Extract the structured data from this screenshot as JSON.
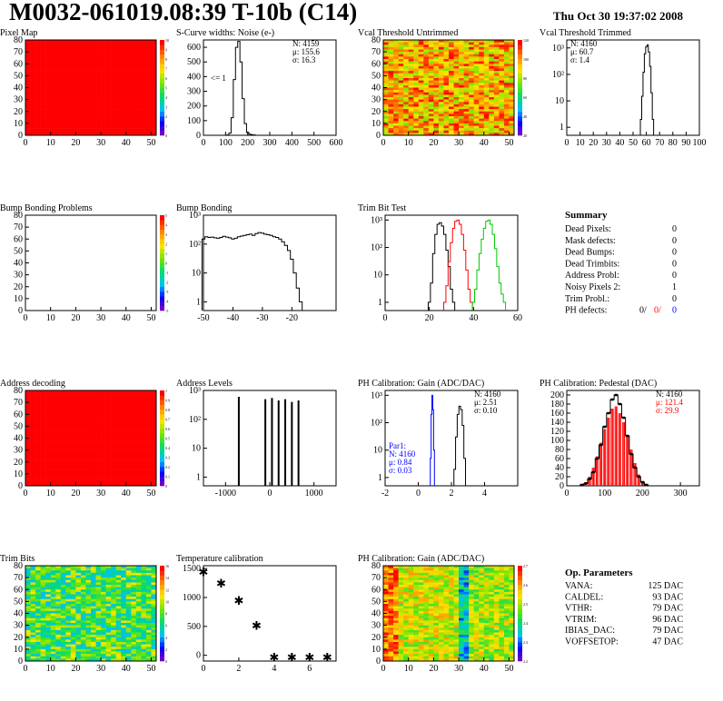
{
  "header": {
    "title": "M0032-061019.08:39 T-10b (C14)",
    "date": "Thu Oct 30 19:37:02 2008"
  },
  "colors": {
    "red": "#ff0000",
    "blue": "#0000ff",
    "green": "#00c800",
    "black": "#000000"
  },
  "chart_data": [
    {
      "id": "pixel-map",
      "type": "heatmap",
      "title": "Pixel Map",
      "xlim": [
        0,
        52
      ],
      "ylim": [
        0,
        80
      ],
      "fill": "#ff0000",
      "xticks": [
        "0",
        "10",
        "20",
        "30",
        "40",
        "50"
      ],
      "yticks": [
        "0",
        "10",
        "20",
        "30",
        "40",
        "50",
        "60",
        "70",
        "80"
      ],
      "zticks": [
        "0",
        "1",
        "2",
        "3",
        "4",
        "5",
        "6",
        "7",
        "8",
        "9",
        "10"
      ],
      "zmax": 10,
      "pattern": "uniform"
    },
    {
      "id": "scurve-noise",
      "type": "histogram",
      "title": "S-Curve widths: Noise (e-)",
      "xlim": [
        0,
        600
      ],
      "ylim": [
        0,
        650
      ],
      "xticks": [
        "0",
        "100",
        "200",
        "300",
        "400",
        "500",
        "600"
      ],
      "yticks": [
        "0",
        "100",
        "200",
        "300",
        "400",
        "500",
        "600"
      ],
      "stats": [
        "N: 4159",
        "μ: 155.6",
        "σ: 16.3"
      ],
      "annotation": "<= 1",
      "series": [
        {
          "color": "#000000",
          "x": [
            110,
            120,
            130,
            140,
            150,
            160,
            170,
            180,
            190,
            200,
            210,
            220,
            230
          ],
          "values": [
            2,
            15,
            120,
            380,
            600,
            640,
            500,
            250,
            80,
            20,
            8,
            4,
            2
          ]
        }
      ]
    },
    {
      "id": "vcal-untrimmed",
      "type": "heatmap",
      "title": "Vcal Threshold Untrimmed",
      "xlim": [
        0,
        52
      ],
      "ylim": [
        0,
        80
      ],
      "xticks": [
        "0",
        "10",
        "20",
        "30",
        "40",
        "50"
      ],
      "yticks": [
        "0",
        "10",
        "20",
        "30",
        "40",
        "50",
        "60",
        "70",
        "80"
      ],
      "zticks": [
        "20",
        "40",
        "60",
        "80",
        "100",
        "120"
      ],
      "zmax": 130,
      "pattern": "noise-warm"
    },
    {
      "id": "vcal-trimmed",
      "type": "histogram",
      "title": "Vcal Threshold Trimmed",
      "yscale": "log",
      "xlim": [
        0,
        100
      ],
      "ylim": [
        0.5,
        2000
      ],
      "xticks": [
        "0",
        "10",
        "20",
        "30",
        "40",
        "50",
        "60",
        "70",
        "80",
        "90",
        "100"
      ],
      "yticks": [
        "1",
        "10",
        "10²",
        "10³"
      ],
      "stats": [
        "N: 4160",
        "μ: 60.7",
        "σ: 1.4"
      ],
      "series": [
        {
          "color": "#000000",
          "x": [
            56,
            57,
            58,
            59,
            60,
            61,
            62,
            63,
            64,
            65
          ],
          "values": [
            2,
            15,
            120,
            600,
            1100,
            1300,
            700,
            200,
            20,
            2
          ]
        }
      ]
    },
    {
      "id": "bump-problems",
      "type": "heatmap",
      "title": "Bump Bonding Problems",
      "xlim": [
        0,
        52
      ],
      "ylim": [
        0,
        80
      ],
      "xticks": [
        "0",
        "10",
        "20",
        "30",
        "40",
        "50"
      ],
      "yticks": [
        "0",
        "10",
        "20",
        "30",
        "40",
        "50",
        "60",
        "70",
        "80"
      ],
      "zticks": [
        "-5",
        "-4",
        "-3",
        "-2",
        "-1",
        "0",
        "1",
        "2",
        "3",
        "4",
        "5"
      ],
      "zmax": 5,
      "pattern": "empty"
    },
    {
      "id": "bump-bonding",
      "type": "histogram",
      "title": "Bump Bonding",
      "yscale": "log",
      "xlim": [
        -50,
        -5
      ],
      "ylim": [
        0.5,
        1000
      ],
      "xticks": [
        "-50",
        "-40",
        "-30",
        "-20"
      ],
      "yticks": [
        "1",
        "10",
        "10²",
        "10³"
      ],
      "series": [
        {
          "color": "#000000",
          "x": [
            -50,
            -49,
            -48,
            -47,
            -46,
            -45,
            -44,
            -43,
            -42,
            -41,
            -40,
            -39,
            -38,
            -37,
            -36,
            -35,
            -34,
            -33,
            -32,
            -31,
            -30,
            -29,
            -28,
            -27,
            -26,
            -25,
            -24,
            -23,
            -22,
            -21,
            -20,
            -19,
            -18,
            -17
          ],
          "values": [
            150,
            180,
            170,
            175,
            165,
            160,
            170,
            185,
            175,
            165,
            150,
            160,
            180,
            190,
            200,
            210,
            220,
            200,
            230,
            250,
            240,
            220,
            210,
            200,
            180,
            170,
            150,
            120,
            90,
            60,
            30,
            10,
            3,
            1
          ]
        }
      ]
    },
    {
      "id": "trim-bit-test",
      "type": "histogram",
      "title": "Trim Bit Test",
      "yscale": "log",
      "xlim": [
        0,
        60
      ],
      "ylim": [
        0.5,
        1500
      ],
      "xticks": [
        "0",
        "20",
        "40",
        "60"
      ],
      "yticks": [
        "1",
        "10",
        "10²",
        "10³"
      ],
      "series": [
        {
          "color": "#000000",
          "x": [
            20,
            21,
            22,
            23,
            24,
            25,
            26,
            27,
            28,
            29,
            30,
            31
          ],
          "values": [
            1,
            5,
            60,
            300,
            700,
            800,
            600,
            300,
            80,
            20,
            3,
            1
          ]
        },
        {
          "color": "#ff0000",
          "x": [
            27,
            28,
            29,
            30,
            31,
            32,
            33,
            34,
            35,
            36,
            37,
            38,
            39
          ],
          "values": [
            1,
            4,
            30,
            150,
            500,
            900,
            1000,
            700,
            300,
            80,
            15,
            3,
            1
          ]
        },
        {
          "color": "#00c800",
          "x": [
            40,
            41,
            42,
            43,
            44,
            45,
            46,
            47,
            48,
            49,
            50,
            51,
            52,
            53,
            54
          ],
          "values": [
            1,
            3,
            15,
            60,
            200,
            500,
            900,
            1000,
            700,
            300,
            90,
            20,
            5,
            2,
            1
          ]
        }
      ]
    },
    {
      "id": "address-decoding",
      "type": "heatmap",
      "title": "Address decoding",
      "xlim": [
        0,
        52
      ],
      "ylim": [
        0,
        80
      ],
      "fill": "#ff0000",
      "xticks": [
        "0",
        "10",
        "20",
        "30",
        "40",
        "50"
      ],
      "yticks": [
        "0",
        "10",
        "20",
        "30",
        "40",
        "50",
        "60",
        "70",
        "80"
      ],
      "zticks": [
        "0",
        "0.1",
        "0.2",
        "0.3",
        "0.4",
        "0.5",
        "0.6",
        "0.7",
        "0.8",
        "0.9",
        "1"
      ],
      "zmax": 1,
      "pattern": "uniform"
    },
    {
      "id": "address-levels",
      "type": "histogram",
      "title": "Address Levels",
      "yscale": "log",
      "xlim": [
        -1500,
        1500
      ],
      "ylim": [
        0.5,
        1000
      ],
      "xticks": [
        "-1000",
        "0",
        "1000"
      ],
      "yticks": [
        "1",
        "10",
        "10²",
        "10³"
      ],
      "spikes": [
        {
          "x": -700,
          "v": 600
        },
        {
          "x": -100,
          "v": 500
        },
        {
          "x": 50,
          "v": 550
        },
        {
          "x": 200,
          "v": 450
        },
        {
          "x": 350,
          "v": 500
        },
        {
          "x": 500,
          "v": 400
        },
        {
          "x": 650,
          "v": 450
        }
      ],
      "series": [
        {
          "color": "#000000",
          "x": [],
          "values": []
        }
      ]
    },
    {
      "id": "ph-gain",
      "type": "histogram",
      "title": "PH Calibration: Gain (ADC/DAC)",
      "yscale": "log",
      "xlim": [
        -2,
        6
      ],
      "ylim": [
        0.5,
        1500
      ],
      "xticks": [
        "-2",
        "0",
        "2",
        "4"
      ],
      "yticks": [
        "1",
        "10",
        "10²",
        "10³"
      ],
      "stats": [
        "N: 4160",
        "μ: 2.51",
        "σ: 0.10"
      ],
      "stats2": [
        "Par1:",
        "N: 4160",
        "μ: 0.84",
        "σ: 0.03"
      ],
      "series": [
        {
          "color": "#000000",
          "x": [
            2.2,
            2.3,
            2.4,
            2.5,
            2.6,
            2.7,
            2.8
          ],
          "values": [
            2,
            30,
            200,
            400,
            300,
            80,
            5
          ]
        },
        {
          "color": "#0000ff",
          "x": [
            0.75,
            0.8,
            0.85,
            0.9,
            0.95
          ],
          "values": [
            5,
            200,
            1000,
            300,
            10
          ]
        }
      ]
    },
    {
      "id": "ph-pedestal",
      "type": "histogram",
      "title": "PH Calibration: Pedestal (DAC)",
      "xlim": [
        0,
        350
      ],
      "ylim": [
        0,
        210
      ],
      "xticks": [
        "0",
        "100",
        "200",
        "300"
      ],
      "yticks": [
        "0",
        "20",
        "40",
        "60",
        "80",
        "100",
        "120",
        "140",
        "160",
        "180",
        "200"
      ],
      "stats": [
        "N: 4160",
        "μ: 121.4",
        "σ: 29.9"
      ],
      "series": [
        {
          "color": "#000000",
          "x": [
            40,
            50,
            60,
            70,
            80,
            90,
            100,
            110,
            120,
            130,
            140,
            150,
            160,
            170,
            180,
            190,
            200,
            210
          ],
          "values": [
            2,
            5,
            15,
            30,
            60,
            90,
            130,
            160,
            190,
            200,
            180,
            150,
            110,
            70,
            40,
            20,
            8,
            2
          ]
        },
        {
          "color": "#ff0000",
          "x": [
            40,
            50,
            60,
            70,
            80,
            90,
            100,
            110,
            120,
            130,
            140,
            150,
            160,
            170,
            180,
            190,
            200,
            210
          ],
          "values": [
            3,
            8,
            20,
            40,
            65,
            95,
            125,
            150,
            170,
            175,
            160,
            140,
            110,
            80,
            50,
            25,
            10,
            3
          ]
        }
      ]
    },
    {
      "id": "trim-bits",
      "type": "heatmap",
      "title": "Trim Bits",
      "xlim": [
        0,
        52
      ],
      "ylim": [
        0,
        80
      ],
      "xticks": [
        "0",
        "10",
        "20",
        "30",
        "40",
        "50"
      ],
      "yticks": [
        "0",
        "10",
        "20",
        "30",
        "40",
        "50",
        "60",
        "70",
        "80"
      ],
      "zticks": [
        "0",
        "2",
        "4",
        "6",
        "8",
        "10",
        "12",
        "14",
        "16"
      ],
      "zmax": 16,
      "pattern": "noise-green"
    },
    {
      "id": "temp-calibration",
      "type": "scatter",
      "title": "Temperature calibration",
      "xlim": [
        0,
        7.5
      ],
      "ylim": [
        -100,
        1550
      ],
      "xticks": [
        "0",
        "2",
        "4",
        "6"
      ],
      "yticks": [
        "0",
        "500",
        "1000",
        "1500"
      ],
      "series": [
        {
          "color": "#000000",
          "x": [
            0,
            1,
            2,
            3,
            4,
            5,
            6,
            7
          ],
          "values": [
            1450,
            1250,
            950,
            520,
            -30,
            -30,
            -30,
            -30
          ]
        }
      ]
    },
    {
      "id": "ph-gain-map",
      "type": "heatmap",
      "title": "PH Calibration: Gain (ADC/DAC)",
      "xlim": [
        0,
        52
      ],
      "ylim": [
        0,
        80
      ],
      "xticks": [
        "0",
        "10",
        "20",
        "30",
        "40",
        "50"
      ],
      "yticks": [
        "0",
        "10",
        "20",
        "30",
        "40",
        "50",
        "60",
        "70",
        "80"
      ],
      "zticks": [
        "2.2",
        "2.3",
        "2.4",
        "2.5",
        "2.6",
        "2.7"
      ],
      "zmax": 2.8,
      "pattern": "columns"
    }
  ],
  "summary": {
    "title": "Summary",
    "rows": [
      {
        "label": "Dead Pixels:",
        "value": "0"
      },
      {
        "label": "Mask defects:",
        "value": "0"
      },
      {
        "label": "Dead Bumps:",
        "value": "0"
      },
      {
        "label": "Dead Trimbits:",
        "value": "0"
      },
      {
        "label": "Address Probl:",
        "value": "0"
      },
      {
        "label": "Noisy Pixels 2:",
        "value": "1"
      },
      {
        "label": "Trim Probl.:",
        "value": "0"
      }
    ],
    "ph_defects": {
      "label": "PH defects:",
      "a": "0/",
      "b": "0/",
      "c": "0"
    }
  },
  "parameters": {
    "title": "Op. Parameters",
    "rows": [
      {
        "label": "VANA:",
        "value": "125 DAC"
      },
      {
        "label": "CALDEL:",
        "value": "93 DAC"
      },
      {
        "label": "VTHR:",
        "value": "79 DAC"
      },
      {
        "label": "VTRIM:",
        "value": "96 DAC"
      },
      {
        "label": "IBIAS_DAC:",
        "value": "79 DAC"
      },
      {
        "label": "VOFFSETOP:",
        "value": "47 DAC"
      }
    ]
  }
}
